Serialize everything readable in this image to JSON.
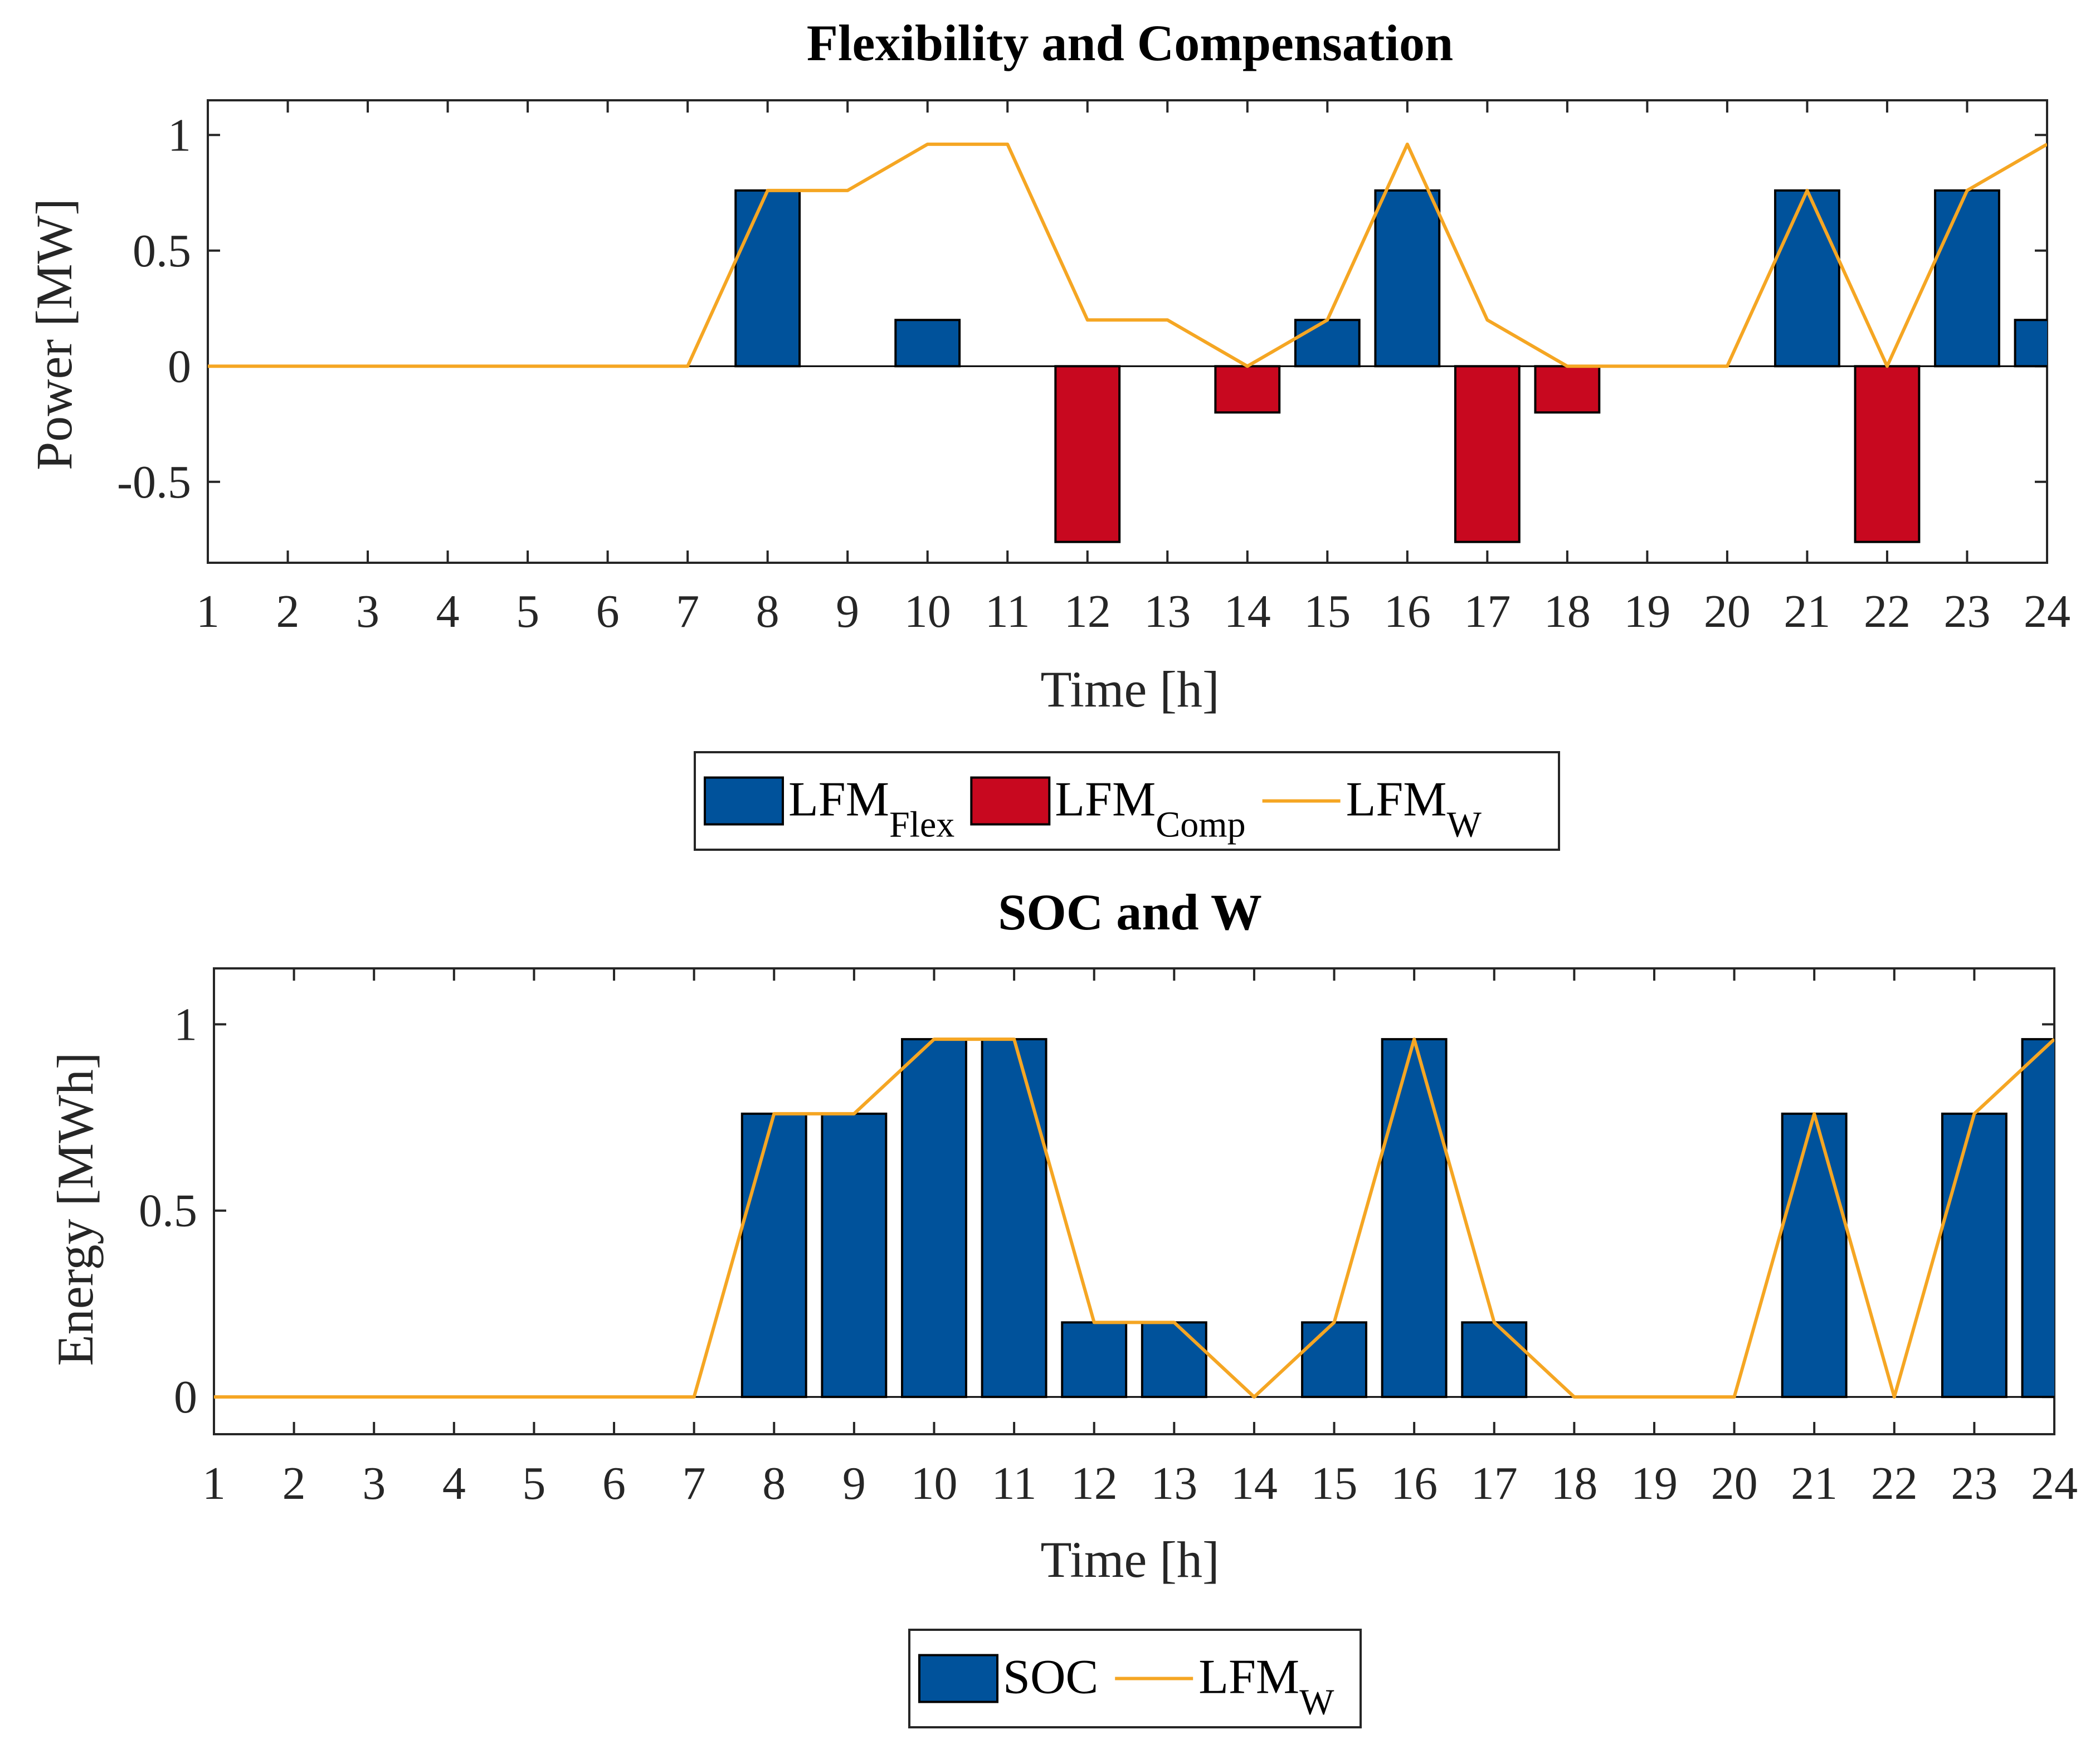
{
  "chart_data": [
    {
      "type": "bar",
      "title": "Flexibility and Compensation",
      "xlabel": "Time [h]",
      "ylabel": "Power [MW]",
      "xlim": [
        1,
        24
      ],
      "ylim": [
        -0.85,
        1.15
      ],
      "x": [
        1,
        2,
        3,
        4,
        5,
        6,
        7,
        8,
        9,
        10,
        11,
        12,
        13,
        14,
        15,
        16,
        17,
        18,
        19,
        20,
        21,
        22,
        23,
        24
      ],
      "xticks": [
        "1",
        "2",
        "3",
        "4",
        "5",
        "6",
        "7",
        "8",
        "9",
        "10",
        "11",
        "12",
        "13",
        "14",
        "15",
        "16",
        "17",
        "18",
        "19",
        "20",
        "21",
        "22",
        "23",
        "24"
      ],
      "yticks": [
        {
          "value": 1,
          "label": "1"
        },
        {
          "value": 0.5,
          "label": "0.5"
        },
        {
          "value": 0,
          "label": "0"
        },
        {
          "value": -0.5,
          "label": "-0.5"
        }
      ],
      "series": [
        {
          "name": "LFM_Flex",
          "kind": "bar",
          "color": "#00529b",
          "values": [
            0,
            0,
            0,
            0,
            0,
            0,
            0,
            0.76,
            0,
            0.2,
            0,
            0,
            0,
            0,
            0.2,
            0.76,
            0,
            0,
            0,
            0,
            0.76,
            0,
            0.76,
            0.2
          ]
        },
        {
          "name": "LFM_Comp",
          "kind": "bar",
          "color": "#c8081f",
          "values": [
            0,
            0,
            0,
            0,
            0,
            0,
            0,
            0,
            0,
            0,
            0,
            -0.76,
            0,
            -0.2,
            0,
            0,
            -0.76,
            -0.2,
            0,
            0,
            0,
            -0.76,
            0,
            0
          ]
        },
        {
          "name": "LFM_W",
          "kind": "line",
          "color": "#f5a623",
          "values": [
            0,
            0,
            0,
            0,
            0,
            0,
            0,
            0.76,
            0.76,
            0.96,
            0.96,
            0.2,
            0.2,
            0,
            0.2,
            0.96,
            0.2,
            0,
            0,
            0,
            0.76,
            0,
            0.76,
            0.96
          ]
        }
      ],
      "legend": [
        {
          "kind": "bar",
          "color": "#00529b",
          "base": "LFM",
          "sub": "Flex"
        },
        {
          "kind": "bar",
          "color": "#c8081f",
          "base": "LFM",
          "sub": "Comp"
        },
        {
          "kind": "line",
          "color": "#f5a623",
          "base": "LFM",
          "sub": "W"
        }
      ],
      "legend_placement": "below"
    },
    {
      "type": "bar",
      "title": "SOC and W",
      "xlabel": "Time [h]",
      "ylabel": "Energy [MWh]",
      "xlim": [
        1,
        24
      ],
      "ylim": [
        -0.1,
        1.15
      ],
      "x": [
        1,
        2,
        3,
        4,
        5,
        6,
        7,
        8,
        9,
        10,
        11,
        12,
        13,
        14,
        15,
        16,
        17,
        18,
        19,
        20,
        21,
        22,
        23,
        24
      ],
      "xticks": [
        "1",
        "2",
        "3",
        "4",
        "5",
        "6",
        "7",
        "8",
        "9",
        "10",
        "11",
        "12",
        "13",
        "14",
        "15",
        "16",
        "17",
        "18",
        "19",
        "20",
        "21",
        "22",
        "23",
        "24"
      ],
      "yticks": [
        {
          "value": 1,
          "label": "1"
        },
        {
          "value": 0.5,
          "label": "0.5"
        },
        {
          "value": 0,
          "label": "0"
        }
      ],
      "series": [
        {
          "name": "SOC",
          "kind": "bar",
          "color": "#00529b",
          "values": [
            0,
            0,
            0,
            0,
            0,
            0,
            0,
            0.76,
            0.76,
            0.96,
            0.96,
            0.2,
            0.2,
            0,
            0.2,
            0.96,
            0.2,
            0,
            0,
            0,
            0.76,
            0,
            0.76,
            0.96
          ]
        },
        {
          "name": "LFM_W",
          "kind": "line",
          "color": "#f5a623",
          "values": [
            0,
            0,
            0,
            0,
            0,
            0,
            0,
            0.76,
            0.76,
            0.96,
            0.96,
            0.2,
            0.2,
            0,
            0.2,
            0.96,
            0.2,
            0,
            0,
            0,
            0.76,
            0,
            0.76,
            0.96
          ]
        }
      ],
      "legend": [
        {
          "kind": "bar",
          "color": "#00529b",
          "base": "SOC",
          "sub": ""
        },
        {
          "kind": "line",
          "color": "#f5a623",
          "base": "LFM",
          "sub": "W"
        }
      ],
      "legend_placement": "below"
    }
  ]
}
